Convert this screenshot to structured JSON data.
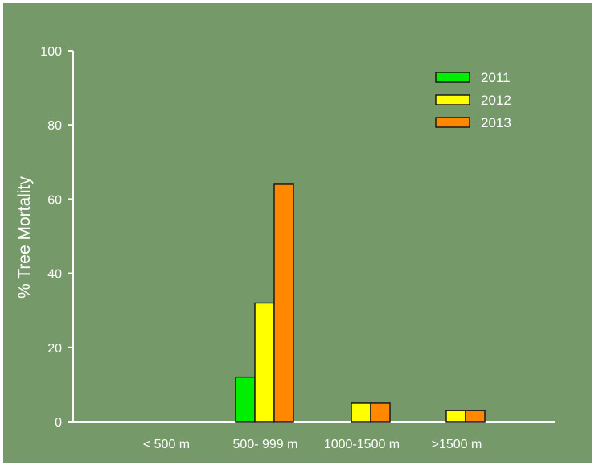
{
  "colors": {
    "background": "#76996a",
    "frame": "#ffffff",
    "axis": "#ffffff",
    "text": "#ffffff",
    "bar_outline": "#1a1a1a"
  },
  "chart_data": {
    "type": "bar",
    "title": "",
    "xlabel": "",
    "ylabel": "% Tree Mortality",
    "categories": [
      "< 500 m",
      "500- 999 m",
      "1000-1500 m",
      ">1500 m"
    ],
    "ylim": [
      0,
      100
    ],
    "yticks": [
      0,
      20,
      40,
      60,
      80,
      100
    ],
    "grid": false,
    "legend_position": "top-right",
    "series": [
      {
        "name": "2011",
        "color": "#00ee00",
        "values": [
          0,
          12,
          0,
          0
        ]
      },
      {
        "name": "2012",
        "color": "#ffff00",
        "values": [
          0,
          32,
          5,
          3
        ]
      },
      {
        "name": "2013",
        "color": "#ff8800",
        "values": [
          0,
          64,
          5,
          3
        ]
      }
    ]
  }
}
